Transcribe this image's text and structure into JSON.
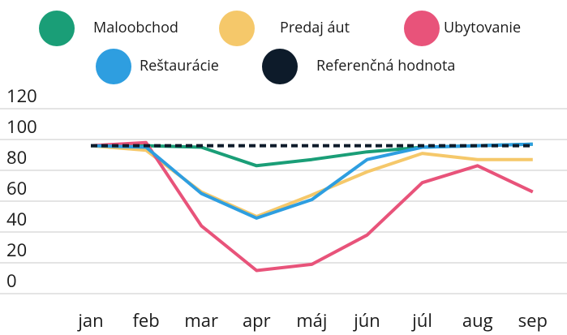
{
  "chart_data": {
    "type": "line",
    "categories": [
      "jan",
      "feb",
      "mar",
      "apr",
      "máj",
      "jún",
      "júl",
      "aug",
      "sep"
    ],
    "series": [
      {
        "name": "Maloobchod",
        "color": "#1a9e77",
        "values": [
          96,
          96,
          95,
          83,
          87,
          92,
          95,
          96,
          97
        ]
      },
      {
        "name": "Predaj áut",
        "color": "#f5c86a",
        "values": [
          96,
          93,
          66,
          50,
          64,
          79,
          91,
          87,
          87
        ]
      },
      {
        "name": "Ubytovanie",
        "color": "#e8537a",
        "values": [
          96,
          98,
          44,
          15,
          19,
          38,
          72,
          83,
          66
        ]
      },
      {
        "name": "Reštaurácie",
        "color": "#2e9ee0",
        "values": [
          96,
          95,
          65,
          49,
          61,
          87,
          95,
          96,
          97
        ]
      },
      {
        "name": "Referenčná hodnota",
        "color": "#0d1b2a",
        "dashed": true,
        "values": [
          96,
          96,
          96,
          96,
          96,
          96,
          96,
          96,
          96
        ]
      }
    ],
    "ylim": [
      0,
      120
    ],
    "yticks": [
      0,
      20,
      40,
      60,
      80,
      100,
      120
    ],
    "grid": true,
    "legend": "top"
  }
}
